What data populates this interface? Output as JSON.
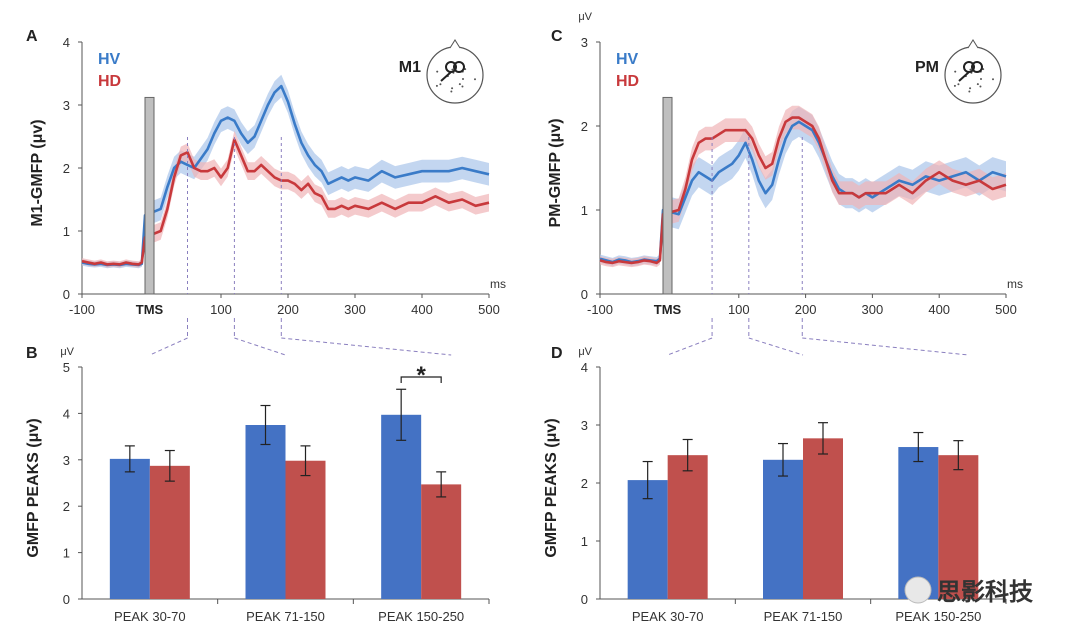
{
  "panels": {
    "A": "A",
    "B": "B",
    "C": "C",
    "D": "D"
  },
  "colors": {
    "hv": "#3a7bc8",
    "hd": "#c8393c",
    "hv_band": "#a9c4ea",
    "hd_band": "#efb4b6",
    "hv_bar": "#4472c4",
    "hd_bar": "#c0504d",
    "tms": "#bfbfbf",
    "guide": "#8a7fbf"
  },
  "chart_data": [
    {
      "type": "line",
      "panel": "A",
      "ylabel": "M1-GMFP (μv)",
      "unit_top": "",
      "xunit": "ms",
      "xlim": [
        -100,
        500
      ],
      "ylim": [
        0,
        4
      ],
      "xticks": [
        -100,
        100,
        200,
        300,
        400,
        500
      ],
      "xtick_labels": [
        "-100",
        "100",
        "200",
        "300",
        "400",
        "500"
      ],
      "yticks": [
        0,
        1,
        2,
        3,
        4
      ],
      "tms_label": "TMS",
      "head_label": "M1",
      "guides_x": [
        50,
        120,
        190
      ],
      "legend": [
        "HV",
        "HD"
      ],
      "series": [
        {
          "name": "HV",
          "x": [
            -100,
            -90,
            -80,
            -70,
            -60,
            -50,
            -40,
            -30,
            -20,
            -10,
            -5,
            0,
            10,
            20,
            30,
            40,
            50,
            60,
            70,
            80,
            90,
            100,
            110,
            120,
            130,
            140,
            150,
            160,
            170,
            180,
            190,
            200,
            210,
            220,
            230,
            240,
            250,
            260,
            270,
            280,
            290,
            300,
            320,
            340,
            360,
            380,
            400,
            420,
            440,
            460,
            480,
            500
          ],
          "y": [
            0.5,
            0.48,
            0.47,
            0.48,
            0.46,
            0.47,
            0.46,
            0.48,
            0.47,
            0.46,
            0.48,
            1.25,
            1.35,
            1.7,
            2.0,
            2.1,
            2.05,
            2.0,
            2.15,
            2.3,
            2.55,
            2.75,
            2.8,
            2.75,
            2.55,
            2.4,
            2.5,
            2.75,
            3.0,
            3.2,
            3.3,
            3.05,
            2.7,
            2.4,
            2.2,
            2.05,
            1.95,
            1.75,
            1.8,
            1.85,
            1.8,
            1.85,
            1.8,
            1.95,
            1.85,
            1.9,
            1.95,
            1.95,
            1.95,
            2.0,
            1.95,
            1.9
          ]
        },
        {
          "name": "HD",
          "x": [
            -100,
            -90,
            -80,
            -70,
            -60,
            -50,
            -40,
            -30,
            -20,
            -10,
            -5,
            0,
            10,
            20,
            30,
            40,
            50,
            60,
            70,
            80,
            90,
            100,
            110,
            120,
            130,
            140,
            150,
            160,
            170,
            180,
            190,
            200,
            210,
            220,
            230,
            240,
            250,
            260,
            270,
            280,
            290,
            300,
            320,
            340,
            360,
            380,
            400,
            420,
            440,
            460,
            480,
            500
          ],
          "y": [
            0.52,
            0.5,
            0.48,
            0.5,
            0.47,
            0.48,
            0.47,
            0.5,
            0.48,
            0.47,
            0.5,
            0.9,
            1.0,
            1.35,
            1.85,
            2.2,
            2.25,
            2.0,
            1.95,
            1.95,
            2.0,
            1.85,
            2.0,
            2.45,
            2.2,
            1.95,
            1.95,
            2.05,
            1.95,
            1.85,
            1.8,
            1.8,
            1.75,
            1.65,
            1.75,
            1.6,
            1.55,
            1.35,
            1.35,
            1.4,
            1.35,
            1.4,
            1.35,
            1.45,
            1.35,
            1.45,
            1.45,
            1.55,
            1.45,
            1.5,
            1.4,
            1.45
          ]
        }
      ]
    },
    {
      "type": "bar",
      "panel": "B",
      "ylabel": "GMFP PEAKS (μv)",
      "unit_top": "μV",
      "categories": [
        "PEAK 30-70",
        "PEAK 71-150",
        "PEAK 150-250"
      ],
      "ylim": [
        0,
        5
      ],
      "yticks": [
        0,
        1,
        2,
        3,
        4,
        5
      ],
      "significance": "*",
      "series": [
        {
          "name": "HV",
          "values": [
            3.02,
            3.75,
            3.97
          ],
          "errors": [
            0.28,
            0.42,
            0.55
          ]
        },
        {
          "name": "HD",
          "values": [
            2.87,
            2.98,
            2.47
          ],
          "errors": [
            0.33,
            0.32,
            0.27
          ]
        }
      ]
    },
    {
      "type": "line",
      "panel": "C",
      "ylabel": "PM-GMFP (μv)",
      "unit_top": "μV",
      "xunit": "ms",
      "xlim": [
        -100,
        500
      ],
      "ylim": [
        0,
        3
      ],
      "xticks": [
        -100,
        100,
        200,
        300,
        400,
        500
      ],
      "xtick_labels": [
        "-100",
        "100",
        "200",
        "300",
        "400",
        "500"
      ],
      "yticks": [
        0,
        1,
        2,
        3
      ],
      "tms_label": "TMS",
      "head_label": "PM",
      "guides_x": [
        60,
        115,
        195
      ],
      "legend": [
        "HV",
        "HD"
      ],
      "series": [
        {
          "name": "HV",
          "x": [
            -100,
            -90,
            -80,
            -70,
            -60,
            -50,
            -40,
            -30,
            -20,
            -10,
            -5,
            0,
            10,
            20,
            30,
            40,
            50,
            60,
            70,
            80,
            90,
            100,
            110,
            120,
            130,
            140,
            150,
            160,
            170,
            180,
            190,
            200,
            210,
            220,
            230,
            240,
            250,
            260,
            270,
            280,
            290,
            300,
            320,
            340,
            360,
            380,
            400,
            420,
            440,
            460,
            480,
            500
          ],
          "y": [
            0.42,
            0.4,
            0.38,
            0.41,
            0.4,
            0.38,
            0.39,
            0.41,
            0.4,
            0.39,
            0.42,
            1.0,
            0.95,
            1.15,
            1.35,
            1.45,
            1.4,
            1.35,
            1.45,
            1.5,
            1.55,
            1.65,
            1.8,
            1.6,
            1.35,
            1.2,
            1.3,
            1.6,
            1.85,
            2.0,
            2.05,
            2.0,
            1.95,
            1.8,
            1.6,
            1.4,
            1.25,
            1.2,
            1.2,
            1.15,
            1.2,
            1.15,
            1.25,
            1.35,
            1.3,
            1.4,
            1.35,
            1.4,
            1.45,
            1.35,
            1.45,
            1.4
          ]
        },
        {
          "name": "HD",
          "x": [
            -100,
            -90,
            -80,
            -70,
            -60,
            -50,
            -40,
            -30,
            -20,
            -10,
            -5,
            0,
            10,
            20,
            30,
            40,
            50,
            60,
            70,
            80,
            90,
            100,
            110,
            120,
            130,
            140,
            150,
            160,
            170,
            180,
            190,
            200,
            210,
            220,
            230,
            240,
            250,
            260,
            270,
            280,
            290,
            300,
            320,
            340,
            360,
            380,
            400,
            420,
            440,
            460,
            480,
            500
          ],
          "y": [
            0.4,
            0.38,
            0.37,
            0.39,
            0.38,
            0.37,
            0.38,
            0.4,
            0.39,
            0.37,
            0.4,
            0.95,
            1.0,
            1.25,
            1.6,
            1.8,
            1.85,
            1.85,
            1.9,
            1.95,
            1.95,
            1.95,
            1.95,
            1.85,
            1.65,
            1.5,
            1.55,
            1.85,
            2.05,
            2.1,
            2.1,
            2.05,
            2.0,
            1.85,
            1.6,
            1.35,
            1.2,
            1.2,
            1.2,
            1.15,
            1.2,
            1.2,
            1.2,
            1.3,
            1.2,
            1.35,
            1.45,
            1.35,
            1.3,
            1.35,
            1.25,
            1.3
          ]
        }
      ]
    },
    {
      "type": "bar",
      "panel": "D",
      "ylabel": "GMFP PEAKS (μv)",
      "unit_top": "μV",
      "categories": [
        "PEAK 30-70",
        "PEAK 71-150",
        "PEAK 150-250"
      ],
      "ylim": [
        0,
        4
      ],
      "yticks": [
        0,
        1,
        2,
        3,
        4
      ],
      "significance": "",
      "series": [
        {
          "name": "HV",
          "values": [
            2.05,
            2.4,
            2.62
          ],
          "errors": [
            0.32,
            0.28,
            0.25
          ]
        },
        {
          "name": "HD",
          "values": [
            2.48,
            2.77,
            2.48
          ],
          "errors": [
            0.27,
            0.27,
            0.25
          ]
        }
      ]
    }
  ],
  "watermark": "思影科技"
}
